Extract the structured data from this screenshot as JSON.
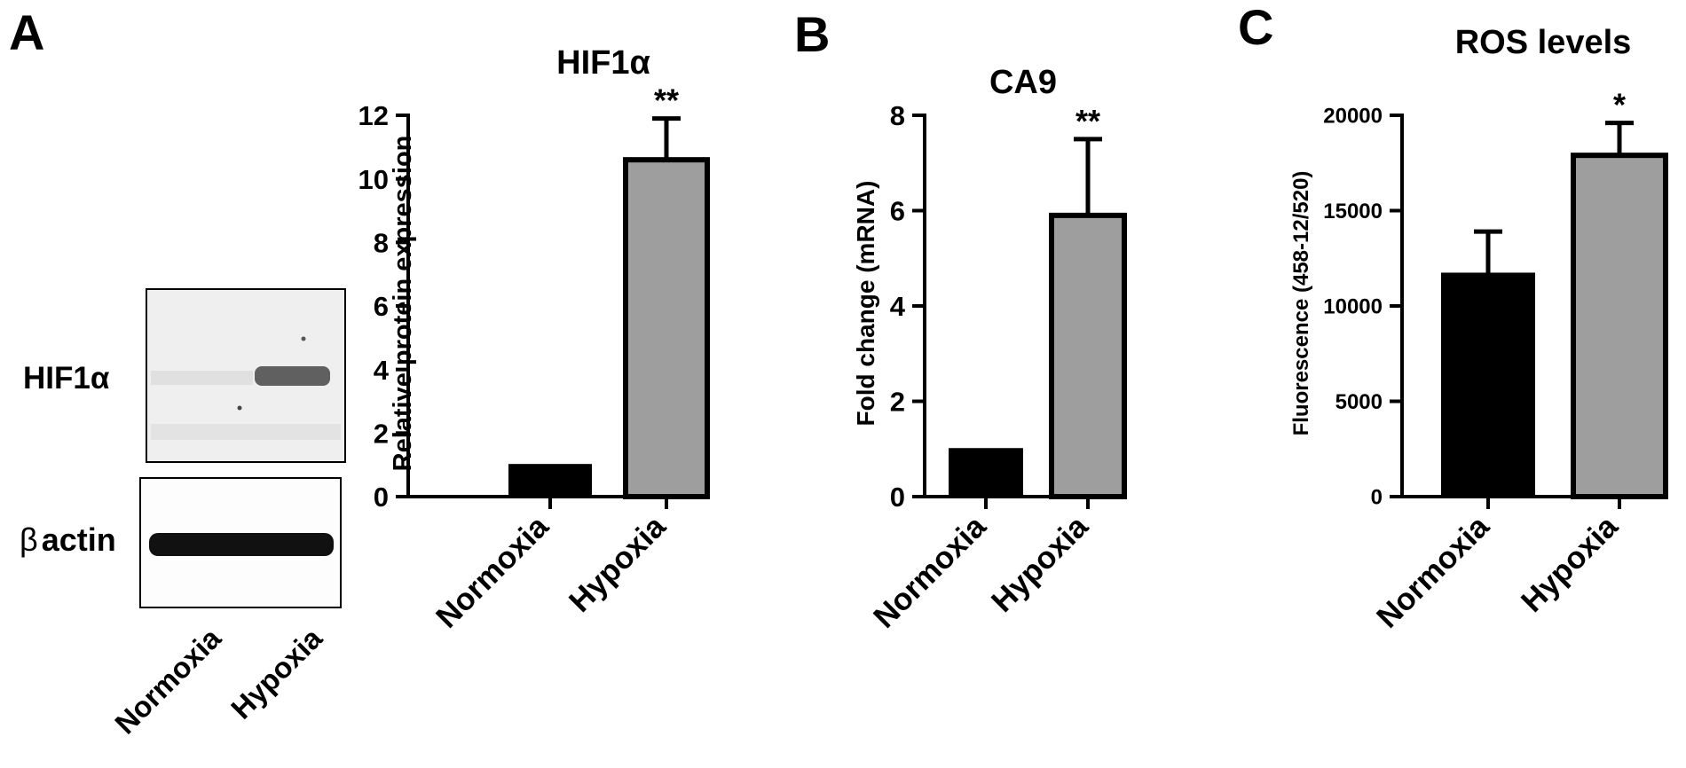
{
  "panels": {
    "A": {
      "letter": "A"
    },
    "B": {
      "letter": "B"
    },
    "C": {
      "letter": "C"
    }
  },
  "blot": {
    "hif_label": "HIF1α",
    "actin_greek": "β",
    "actin_label": "actin",
    "lane_labels": [
      "Normoxia",
      "Hypoxia"
    ]
  },
  "chart_data": [
    {
      "type": "bar",
      "title": "HIF1α",
      "ylabel": "Relative protein expression",
      "categories": [
        "Normoxia",
        "Hypoxia"
      ],
      "values": [
        1.0,
        10.6
      ],
      "errors": [
        0,
        1.3
      ],
      "significance": [
        "",
        "**"
      ],
      "bar_colors": [
        "#000000",
        "#9e9e9e"
      ],
      "ylim": [
        0,
        12
      ],
      "yticks": [
        0,
        2,
        4,
        6,
        8,
        10,
        12
      ],
      "ytick_labels": [
        "0",
        "2",
        "4",
        "6",
        "8",
        "10",
        "12"
      ]
    },
    {
      "type": "bar",
      "title": "CA9",
      "ylabel": "Fold change (mRNA)",
      "categories": [
        "Normoxia",
        "Hypoxia"
      ],
      "values": [
        1.0,
        5.9
      ],
      "errors": [
        0,
        1.6
      ],
      "significance": [
        "",
        "**"
      ],
      "bar_colors": [
        "#000000",
        "#9e9e9e"
      ],
      "ylim": [
        0,
        8
      ],
      "yticks": [
        0,
        2,
        4,
        6,
        8
      ],
      "ytick_labels": [
        "0",
        "2",
        "4",
        "6",
        "8"
      ]
    },
    {
      "type": "bar",
      "title": "ROS levels",
      "ylabel": "Fluorescence (458-12/520)",
      "categories": [
        "Normoxia",
        "Hypoxia"
      ],
      "values": [
        11700,
        17900
      ],
      "errors": [
        2200,
        1700
      ],
      "significance": [
        "",
        "*"
      ],
      "bar_colors": [
        "#000000",
        "#9e9e9e"
      ],
      "ylim": [
        0,
        20000
      ],
      "yticks": [
        0,
        5000,
        10000,
        15000,
        20000
      ],
      "ytick_labels": [
        "0",
        "5000",
        "10000",
        "15000",
        "20000"
      ]
    }
  ]
}
